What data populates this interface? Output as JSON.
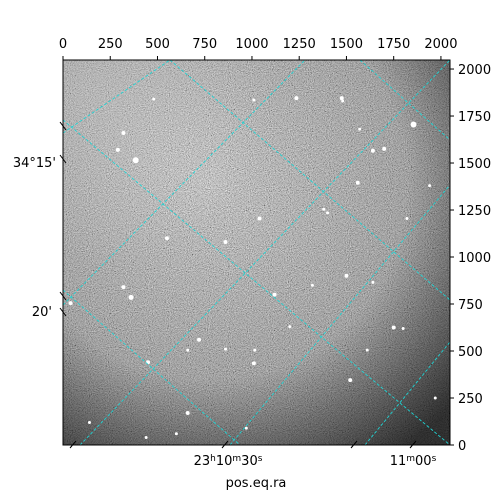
{
  "figure": {
    "xlabel": "pos.eq.ra",
    "colors": {
      "grid": "#1fd3d3",
      "frame": "#000000",
      "star": "#ffffff"
    }
  },
  "top_axis": {
    "ticks": [
      "0",
      "250",
      "500",
      "750",
      "1000",
      "1250",
      "1500",
      "1750",
      "2000"
    ],
    "range": [
      0,
      2048
    ]
  },
  "right_axis": {
    "ticks": [
      "0",
      "250",
      "500",
      "750",
      "1000",
      "1250",
      "1500",
      "1750",
      "2000"
    ],
    "range": [
      0,
      2048
    ]
  },
  "left_axis": {
    "ticks": [
      {
        "label": "34°15'",
        "pixel": 1505
      },
      {
        "label": "20'",
        "pixel": 710
      }
    ]
  },
  "bottom_axis": {
    "ticks": [
      {
        "label": "23h10m30s",
        "parts": [
          "23",
          "h",
          "10",
          "m",
          "30",
          "s"
        ],
        "pixel": 920
      },
      {
        "label": "11m00s",
        "parts": [
          "11",
          "m",
          "00",
          "s"
        ],
        "pixel": 1840
      }
    ]
  },
  "chart_data": {
    "type": "heatmap",
    "image_extent": {
      "x": [
        0,
        2048
      ],
      "y": [
        0,
        2048
      ]
    },
    "grid_overlay": "WCS coordinate grid (cyan dashed)",
    "stars": [
      {
        "x": 1855,
        "y": 1705,
        "r": 3
      },
      {
        "x": 1700,
        "y": 1575,
        "r": 2
      },
      {
        "x": 1640,
        "y": 1565,
        "r": 2
      },
      {
        "x": 320,
        "y": 1660,
        "r": 2
      },
      {
        "x": 385,
        "y": 1515,
        "r": 3
      },
      {
        "x": 290,
        "y": 1570,
        "r": 2
      },
      {
        "x": 1235,
        "y": 1845,
        "r": 2
      },
      {
        "x": 1475,
        "y": 1845,
        "r": 2
      },
      {
        "x": 1010,
        "y": 1835,
        "r": 1.5
      },
      {
        "x": 480,
        "y": 1840,
        "r": 1.5
      },
      {
        "x": 1040,
        "y": 1205,
        "r": 2
      },
      {
        "x": 1400,
        "y": 1235,
        "r": 1.5
      },
      {
        "x": 1560,
        "y": 1395,
        "r": 2
      },
      {
        "x": 1380,
        "y": 1255,
        "r": 1.5
      },
      {
        "x": 1820,
        "y": 1205,
        "r": 1.5
      },
      {
        "x": 860,
        "y": 1080,
        "r": 2
      },
      {
        "x": 550,
        "y": 1100,
        "r": 2
      },
      {
        "x": 1500,
        "y": 900,
        "r": 2
      },
      {
        "x": 1320,
        "y": 850,
        "r": 1.5
      },
      {
        "x": 1640,
        "y": 865,
        "r": 1.5
      },
      {
        "x": 1120,
        "y": 800,
        "r": 2
      },
      {
        "x": 320,
        "y": 840,
        "r": 2
      },
      {
        "x": 360,
        "y": 785,
        "r": 2.5
      },
      {
        "x": 720,
        "y": 560,
        "r": 2
      },
      {
        "x": 1750,
        "y": 625,
        "r": 2
      },
      {
        "x": 1800,
        "y": 620,
        "r": 1.5
      },
      {
        "x": 1610,
        "y": 505,
        "r": 1.5
      },
      {
        "x": 1010,
        "y": 435,
        "r": 2
      },
      {
        "x": 1015,
        "y": 505,
        "r": 1.5
      },
      {
        "x": 450,
        "y": 440,
        "r": 2
      },
      {
        "x": 660,
        "y": 505,
        "r": 1.5
      },
      {
        "x": 1520,
        "y": 345,
        "r": 2
      },
      {
        "x": 660,
        "y": 170,
        "r": 2
      },
      {
        "x": 1970,
        "y": 250,
        "r": 1.5
      },
      {
        "x": 140,
        "y": 120,
        "r": 1.5
      },
      {
        "x": 440,
        "y": 40,
        "r": 1.5
      },
      {
        "x": 600,
        "y": 60,
        "r": 1.5
      },
      {
        "x": 970,
        "y": 90,
        "r": 1.5
      },
      {
        "x": 1480,
        "y": 1830,
        "r": 1.5
      },
      {
        "x": 40,
        "y": 755,
        "r": 2
      },
      {
        "x": 1940,
        "y": 1380,
        "r": 1.5
      },
      {
        "x": 1570,
        "y": 1680,
        "r": 1.5
      },
      {
        "x": 860,
        "y": 510,
        "r": 1.5
      },
      {
        "x": 1200,
        "y": 630,
        "r": 1.5
      }
    ]
  }
}
